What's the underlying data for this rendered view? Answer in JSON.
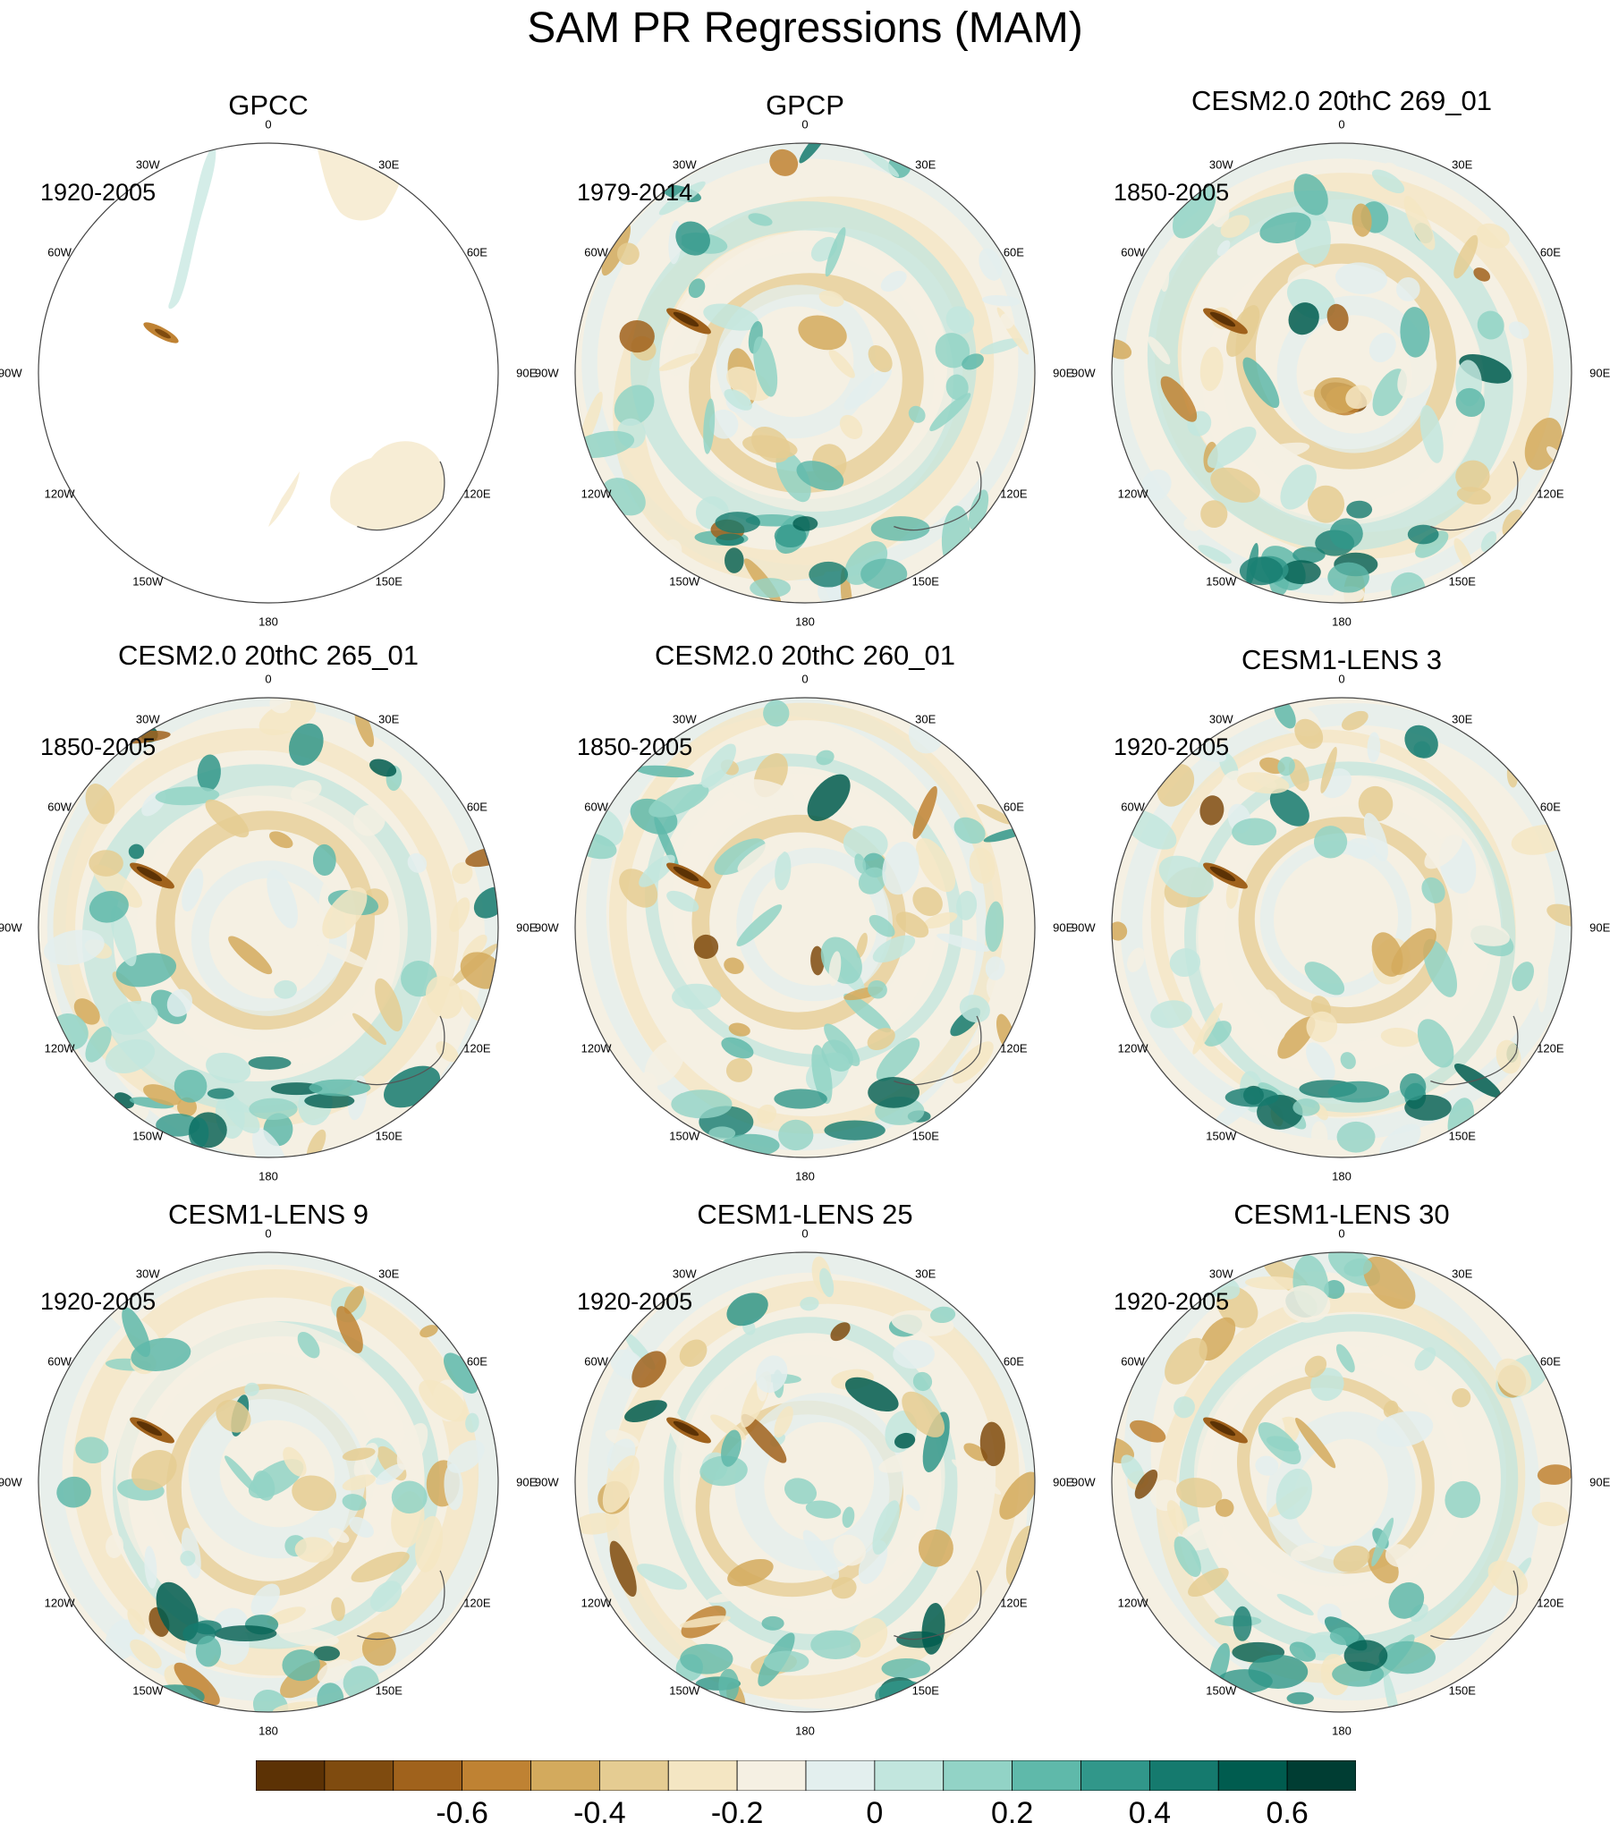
{
  "title": "SAM PR Regressions (MAM)",
  "panels": [
    {
      "id": "gpcc",
      "title": "GPCC",
      "period": "1920-2005",
      "coverage": "land"
    },
    {
      "id": "gpcp",
      "title": "GPCP",
      "period": "1979-2014",
      "coverage": "full"
    },
    {
      "id": "cesm2-269",
      "title": "CESM2.0 20thC 269_01",
      "period": "1850-2005",
      "coverage": "full"
    },
    {
      "id": "cesm2-265",
      "title": "CESM2.0 20thC 265_01",
      "period": "1850-2005",
      "coverage": "full"
    },
    {
      "id": "cesm2-260",
      "title": "CESM2.0 20thC 260_01",
      "period": "1850-2005",
      "coverage": "full"
    },
    {
      "id": "lens-3",
      "title": "CESM1-LENS 3",
      "period": "1920-2005",
      "coverage": "full"
    },
    {
      "id": "lens-9",
      "title": "CESM1-LENS 9",
      "period": "1920-2005",
      "coverage": "full"
    },
    {
      "id": "lens-25",
      "title": "CESM1-LENS 25",
      "period": "1920-2005",
      "coverage": "full"
    },
    {
      "id": "lens-30",
      "title": "CESM1-LENS 30",
      "period": "1920-2005",
      "coverage": "full"
    }
  ],
  "longitude_labels": [
    "0",
    "30E",
    "60E",
    "90E",
    "120E",
    "150E",
    "180",
    "150W",
    "120W",
    "90W",
    "60W",
    "30W"
  ],
  "colorbar": {
    "colors": [
      "#5c3205",
      "#7f4b0f",
      "#a0621c",
      "#bf8233",
      "#d3aa5d",
      "#e5cc92",
      "#f4e6c3",
      "#f5f0e3",
      "#e3efee",
      "#c2e6de",
      "#92d3c6",
      "#5fb9aa",
      "#31978a",
      "#157a6e",
      "#005c4f",
      "#003d33"
    ],
    "ticks": [
      "-0.6",
      "-0.4",
      "-0.2",
      "0",
      "0.2",
      "0.4",
      "0.6"
    ]
  }
}
